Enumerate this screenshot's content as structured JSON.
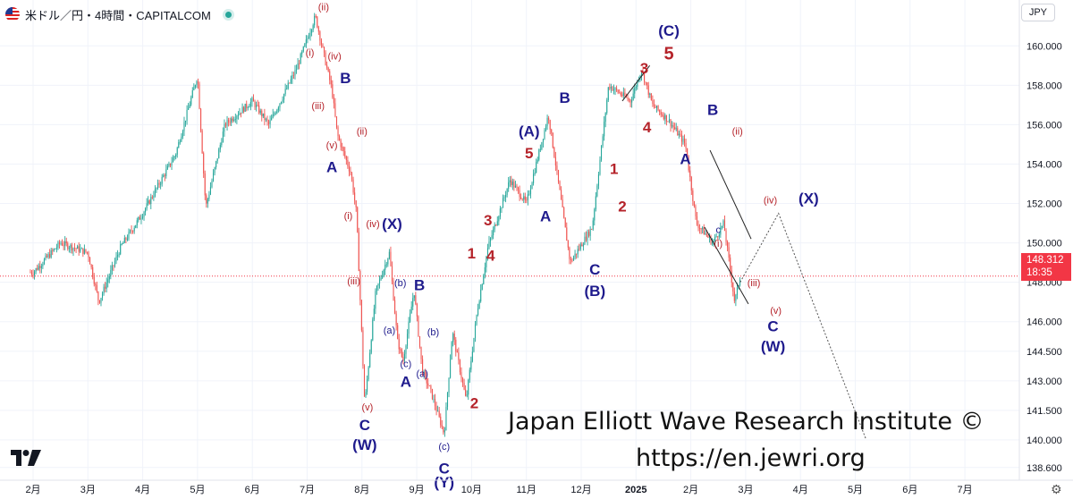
{
  "header": {
    "title": "米ドル／円・4時間・CAPITALCOM",
    "flag_icon": "us-flag-icon",
    "status_icon": "live-dot-icon",
    "status_color": "#26a69a"
  },
  "currency_button": "JPY",
  "last_price": {
    "value": "148.312",
    "countdown": "18:35",
    "color": "#f23645"
  },
  "watermark": {
    "line1": "Japan Elliott Wave Research Institute ©",
    "line2": "https://en.jewri.org"
  },
  "colors": {
    "up": "#26a69a",
    "down": "#ef5350",
    "label_blue": "#1e1a8c",
    "label_red": "#b5232a"
  },
  "chart_data": {
    "type": "candlestick",
    "y_ticks": [
      "160.000",
      "158.000",
      "156.000",
      "154.000",
      "152.000",
      "150.000",
      "148.000",
      "146.000",
      "144.500",
      "143.000",
      "141.500",
      "140.000",
      "138.600"
    ],
    "x_ticks": [
      "2月",
      "3月",
      "4月",
      "5月",
      "6月",
      "7月",
      "8月",
      "9月",
      "10月",
      "11月",
      "12月",
      "2025",
      "2月",
      "3月",
      "4月",
      "5月",
      "6月",
      "7月"
    ],
    "ylim": [
      138.0,
      161.6
    ],
    "last_price": 148.312,
    "price_path": [
      {
        "t": 1.0,
        "v": 148.5
      },
      {
        "t": 1.5,
        "v": 150.0
      },
      {
        "t": 2.0,
        "v": 149.5
      },
      {
        "t": 2.2,
        "v": 147.0
      },
      {
        "t": 2.6,
        "v": 149.8
      },
      {
        "t": 3.0,
        "v": 151.5
      },
      {
        "t": 3.6,
        "v": 154.5
      },
      {
        "t": 4.0,
        "v": 158.5
      },
      {
        "t": 4.15,
        "v": 151.8
      },
      {
        "t": 4.5,
        "v": 156.0
      },
      {
        "t": 5.0,
        "v": 157.2
      },
      {
        "t": 5.3,
        "v": 156.0
      },
      {
        "t": 5.8,
        "v": 158.8
      },
      {
        "t": 6.15,
        "v": 161.5
      },
      {
        "t": 6.35,
        "v": 159.0
      },
      {
        "t": 6.45,
        "v": 157.8
      },
      {
        "t": 6.55,
        "v": 155.5
      },
      {
        "t": 6.8,
        "v": 153.5
      },
      {
        "t": 6.9,
        "v": 151.5
      },
      {
        "t": 7.05,
        "v": 141.8
      },
      {
        "t": 7.25,
        "v": 147.5
      },
      {
        "t": 7.5,
        "v": 149.5
      },
      {
        "t": 7.65,
        "v": 145.0
      },
      {
        "t": 7.75,
        "v": 144.0
      },
      {
        "t": 7.95,
        "v": 147.6
      },
      {
        "t": 8.1,
        "v": 143.5
      },
      {
        "t": 8.25,
        "v": 142.5
      },
      {
        "t": 8.5,
        "v": 140.3
      },
      {
        "t": 8.65,
        "v": 145.5
      },
      {
        "t": 8.9,
        "v": 142.0
      },
      {
        "t": 9.1,
        "v": 146.5
      },
      {
        "t": 9.3,
        "v": 149.8
      },
      {
        "t": 9.7,
        "v": 153.2
      },
      {
        "t": 10.0,
        "v": 152.0
      },
      {
        "t": 10.4,
        "v": 156.5
      },
      {
        "t": 10.8,
        "v": 149.0
      },
      {
        "t": 11.2,
        "v": 150.8
      },
      {
        "t": 11.5,
        "v": 158.0
      },
      {
        "t": 11.9,
        "v": 157.2
      },
      {
        "t": 12.1,
        "v": 158.8
      },
      {
        "t": 12.3,
        "v": 157.0
      },
      {
        "t": 12.6,
        "v": 156.2
      },
      {
        "t": 12.9,
        "v": 155.0
      },
      {
        "t": 13.1,
        "v": 151.0
      },
      {
        "t": 13.4,
        "v": 150.0
      },
      {
        "t": 13.6,
        "v": 151.0
      },
      {
        "t": 13.8,
        "v": 147.0
      },
      {
        "t": 13.9,
        "v": 148.3
      }
    ],
    "projection": [
      {
        "t": 13.9,
        "v": 148.0
      },
      {
        "t": 14.6,
        "v": 151.5
      },
      {
        "t": 16.2,
        "v": 140.0
      }
    ],
    "channel_lines": [
      [
        {
          "t": 11.75,
          "v": 157.2
        },
        {
          "t": 12.25,
          "v": 159.0
        }
      ],
      [
        {
          "t": 13.35,
          "v": 154.7
        },
        {
          "t": 14.1,
          "v": 150.2
        }
      ],
      [
        {
          "t": 13.25,
          "v": 150.8
        },
        {
          "t": 14.05,
          "v": 146.9
        }
      ]
    ],
    "wave_labels": [
      {
        "text": "(ii)",
        "t": 6.3,
        "v": 161.8,
        "color": "red",
        "size": "s"
      },
      {
        "text": "(i)",
        "t": 6.05,
        "v": 159.5,
        "color": "red",
        "size": "s"
      },
      {
        "text": "(iv)",
        "t": 6.5,
        "v": 159.3,
        "color": "red",
        "size": "s"
      },
      {
        "text": "B",
        "t": 6.7,
        "v": 158.1,
        "color": "blue",
        "size": "m"
      },
      {
        "text": "(iii)",
        "t": 6.2,
        "v": 156.8,
        "color": "red",
        "size": "s"
      },
      {
        "text": "(ii)",
        "t": 7.0,
        "v": 155.5,
        "color": "red",
        "size": "s"
      },
      {
        "text": "(v)",
        "t": 6.45,
        "v": 154.8,
        "color": "red",
        "size": "s"
      },
      {
        "text": "A",
        "t": 6.45,
        "v": 153.6,
        "color": "blue",
        "size": "m"
      },
      {
        "text": "(i)",
        "t": 6.75,
        "v": 151.2,
        "color": "red",
        "size": "s"
      },
      {
        "text": "(iv)",
        "t": 7.2,
        "v": 150.8,
        "color": "red",
        "size": "s"
      },
      {
        "text": "(iii)",
        "t": 6.85,
        "v": 147.9,
        "color": "red",
        "size": "s"
      },
      {
        "text": "(v)",
        "t": 7.1,
        "v": 141.5,
        "color": "red",
        "size": "s"
      },
      {
        "text": "C",
        "t": 7.05,
        "v": 140.5,
        "color": "blue",
        "size": "m"
      },
      {
        "text": "(W)",
        "t": 7.05,
        "v": 139.5,
        "color": "blue",
        "size": "m"
      },
      {
        "text": "(X)",
        "t": 7.55,
        "v": 150.7,
        "color": "blue",
        "size": "m"
      },
      {
        "text": "(b)",
        "t": 7.7,
        "v": 147.8,
        "color": "blue",
        "size": "s"
      },
      {
        "text": "B",
        "t": 8.05,
        "v": 147.6,
        "color": "blue",
        "size": "m"
      },
      {
        "text": "(a)",
        "t": 7.5,
        "v": 145.4,
        "color": "blue",
        "size": "s"
      },
      {
        "text": "(b)",
        "t": 8.3,
        "v": 145.3,
        "color": "blue",
        "size": "s"
      },
      {
        "text": "(c)",
        "t": 7.8,
        "v": 143.7,
        "color": "blue",
        "size": "s"
      },
      {
        "text": "A",
        "t": 7.8,
        "v": 142.7,
        "color": "blue",
        "size": "m"
      },
      {
        "text": "(a)",
        "t": 8.1,
        "v": 143.2,
        "color": "blue",
        "size": "s"
      },
      {
        "text": "(c)",
        "t": 8.5,
        "v": 139.5,
        "color": "blue",
        "size": "s"
      },
      {
        "text": "C",
        "t": 8.5,
        "v": 138.3,
        "color": "blue",
        "size": "m"
      },
      {
        "text": "(Y)",
        "t": 8.5,
        "v": 137.6,
        "color": "blue",
        "size": "m"
      },
      {
        "text": "2",
        "t": 9.05,
        "v": 141.6,
        "color": "red",
        "size": "m"
      },
      {
        "text": "1",
        "t": 9.0,
        "v": 149.2,
        "color": "red",
        "size": "m"
      },
      {
        "text": "4",
        "t": 9.35,
        "v": 149.1,
        "color": "red",
        "size": "m"
      },
      {
        "text": "3",
        "t": 9.3,
        "v": 150.9,
        "color": "red",
        "size": "m"
      },
      {
        "text": "(A)",
        "t": 10.05,
        "v": 155.4,
        "color": "blue",
        "size": "m"
      },
      {
        "text": "5",
        "t": 10.05,
        "v": 154.3,
        "color": "red",
        "size": "m"
      },
      {
        "text": "A",
        "t": 10.35,
        "v": 151.1,
        "color": "blue",
        "size": "m"
      },
      {
        "text": "B",
        "t": 10.7,
        "v": 157.1,
        "color": "blue",
        "size": "m"
      },
      {
        "text": "C",
        "t": 11.25,
        "v": 148.4,
        "color": "blue",
        "size": "m"
      },
      {
        "text": "(B)",
        "t": 11.25,
        "v": 147.3,
        "color": "blue",
        "size": "m"
      },
      {
        "text": "1",
        "t": 11.6,
        "v": 153.5,
        "color": "red",
        "size": "m"
      },
      {
        "text": "2",
        "t": 11.75,
        "v": 151.6,
        "color": "red",
        "size": "m"
      },
      {
        "text": "3",
        "t": 12.15,
        "v": 158.6,
        "color": "red",
        "size": "m"
      },
      {
        "text": "4",
        "t": 12.2,
        "v": 155.6,
        "color": "red",
        "size": "m"
      },
      {
        "text": "5",
        "t": 12.6,
        "v": 159.3,
        "color": "red",
        "size": "l"
      },
      {
        "text": "(C)",
        "t": 12.6,
        "v": 160.5,
        "color": "blue",
        "size": "m"
      },
      {
        "text": "A",
        "t": 12.9,
        "v": 154.0,
        "color": "blue",
        "size": "m"
      },
      {
        "text": "B",
        "t": 13.4,
        "v": 156.5,
        "color": "blue",
        "size": "m"
      },
      {
        "text": "(ii)",
        "t": 13.85,
        "v": 155.5,
        "color": "red",
        "size": "s"
      },
      {
        "text": "(iv)",
        "t": 14.45,
        "v": 152.0,
        "color": "red",
        "size": "s"
      },
      {
        "text": "c",
        "t": 13.5,
        "v": 150.5,
        "color": "blue",
        "size": "s"
      },
      {
        "text": "(i)",
        "t": 13.5,
        "v": 149.8,
        "color": "red",
        "size": "s"
      },
      {
        "text": "(iii)",
        "t": 14.15,
        "v": 147.8,
        "color": "red",
        "size": "s"
      },
      {
        "text": "(v)",
        "t": 14.55,
        "v": 146.4,
        "color": "red",
        "size": "s"
      },
      {
        "text": "C",
        "t": 14.5,
        "v": 145.5,
        "color": "blue",
        "size": "m"
      },
      {
        "text": "(W)",
        "t": 14.5,
        "v": 144.5,
        "color": "blue",
        "size": "m"
      },
      {
        "text": "(X)",
        "t": 15.15,
        "v": 152.0,
        "color": "blue",
        "size": "m"
      }
    ]
  }
}
